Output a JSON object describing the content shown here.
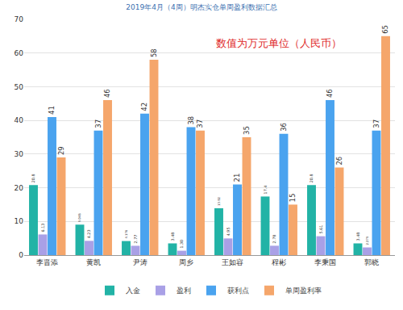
{
  "chart_data": {
    "type": "bar",
    "title": "2019年4月（4周）明杰实仓单周盈利数据汇总",
    "annotations": [
      "数值为万元单位（人民币）"
    ],
    "categories": [
      "李晋添",
      "黄凯",
      "尹涛",
      "周乡",
      "王如容",
      "程彬",
      "李秉国",
      "郭晓"
    ],
    "series": [
      {
        "name": "入金",
        "color": "#22b3a6",
        "values": [
          20.8,
          9.048,
          4.176,
          3.48,
          13.92,
          17.4,
          20.8,
          3.48
        ]
      },
      {
        "name": "盈利",
        "color": "#a9a0e6",
        "values": [
          6.13,
          4.23,
          2.77,
          1.3,
          4.95,
          2.78,
          5.61,
          2.279
        ],
        "value_labels": [
          "6.13",
          "4.23",
          "2.77",
          "1.30",
          "4.95",
          "2.78",
          "5.61",
          "2.279"
        ]
      },
      {
        "name": "获利点",
        "color": "#4aa3ef",
        "values": [
          41,
          37,
          42,
          38,
          21,
          36,
          46,
          37
        ]
      },
      {
        "name": "单周盈利率",
        "color": "#f5a66b",
        "values": [
          29,
          46,
          58,
          37,
          35,
          15,
          26,
          65
        ]
      }
    ],
    "ylim": [
      0,
      70
    ],
    "yticks": [
      0,
      10,
      20,
      30,
      40,
      50,
      60,
      70
    ],
    "grid": true,
    "legend": "bottom",
    "data_labels": true
  }
}
